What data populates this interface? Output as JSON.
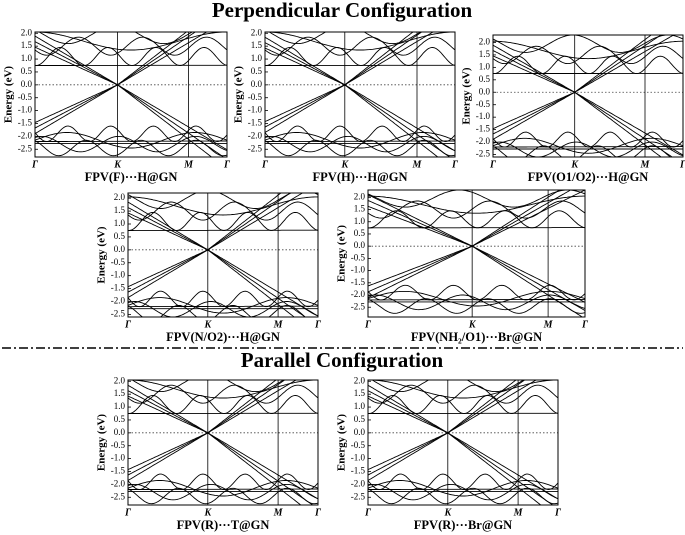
{
  "title_top": "Perpendicular Configuration",
  "title_bottom": "Parallel Configuration",
  "panels": [
    {
      "caption": "FPV(F)···H@GN",
      "ylabel": "Energy (eV)",
      "ylim": [
        -2.8,
        2.05
      ],
      "yticks": [
        {
          "value": 2,
          "label": "2.0"
        },
        1.5,
        {
          "value": 1,
          "label": "1.0"
        },
        0.5,
        {
          "value": 0,
          "label": "0.0"
        },
        -0.5,
        {
          "value": -1,
          "label": "-1.0"
        },
        -1.5,
        {
          "value": -2,
          "label": "-2.0"
        },
        -2.5
      ],
      "xlim": [
        0,
        1
      ],
      "xticks": [
        {
          "value": 0,
          "label": "Γ"
        },
        {
          "value": 0.43,
          "label": "K"
        },
        {
          "value": 0.8,
          "label": "M"
        },
        {
          "value": 1,
          "label": "Γ"
        }
      ]
    },
    {
      "caption": "FPV(H)···H@GN",
      "ylabel": "Energy (eV)",
      "ylim": [
        -2.8,
        2.05
      ],
      "yticks": [
        {
          "value": 2,
          "label": "2.0"
        },
        1.5,
        {
          "value": 1,
          "label": "1.0"
        },
        0.5,
        {
          "value": 0,
          "label": "0.0"
        },
        -0.5,
        {
          "value": -1,
          "label": "-1.0"
        },
        -1.5,
        {
          "value": -2,
          "label": "-2.0"
        },
        -2.5
      ],
      "xlim": [
        0,
        1
      ],
      "xticks": [
        {
          "value": 0,
          "label": "Γ"
        },
        {
          "value": 0.42,
          "label": "K"
        },
        {
          "value": 0.8,
          "label": "M"
        },
        {
          "value": 1,
          "label": "Γ"
        }
      ]
    },
    {
      "caption": "FPV(O1/O2)···H@GN",
      "ylabel": "Energy (eV)",
      "ylim": [
        -2.6,
        2.3
      ],
      "yticks": [
        {
          "value": 2,
          "label": "2.0"
        },
        1.5,
        {
          "value": 1,
          "label": "1.0"
        },
        0.5,
        {
          "value": 0,
          "label": "0.0"
        },
        -0.5,
        {
          "value": -1,
          "label": "-1.0"
        },
        -1.5,
        {
          "value": -2,
          "label": "-2.0"
        },
        -2.5
      ],
      "xlim": [
        0,
        1
      ],
      "xticks": [
        {
          "value": 0,
          "label": "Γ"
        },
        {
          "value": 0.43,
          "label": "K"
        },
        {
          "value": 0.8,
          "label": "M"
        },
        {
          "value": 1,
          "label": "Γ"
        }
      ]
    },
    {
      "caption": "FPV(N/O2)···H@GN",
      "ylabel": "Energy (eV)",
      "ylim": [
        -2.6,
        2.2
      ],
      "yticks": [
        {
          "value": 2,
          "label": "2.0"
        },
        1.5,
        {
          "value": 1,
          "label": "1.0"
        },
        0.5,
        {
          "value": 0,
          "label": "0.0"
        },
        -0.5,
        {
          "value": -1,
          "label": "-1.0"
        },
        -1.5,
        {
          "value": -2,
          "label": "-2.0"
        },
        -2.5
      ],
      "xlim": [
        0,
        1
      ],
      "xticks": [
        {
          "value": 0,
          "label": "Γ"
        },
        {
          "value": 0.42,
          "label": "K"
        },
        {
          "value": 0.79,
          "label": "M"
        },
        {
          "value": 1,
          "label": "Γ"
        }
      ]
    },
    {
      "caption": "FPV(NH₂/O1)···Br@GN",
      "ylabel": "Energy (eV)",
      "ylim": [
        -2.9,
        2.3
      ],
      "yticks": [
        {
          "value": 2,
          "label": "2.0"
        },
        1.5,
        {
          "value": 1,
          "label": "1.0"
        },
        0.5,
        {
          "value": 0,
          "label": "0.0"
        },
        -0.5,
        {
          "value": -1,
          "label": "-1.0"
        },
        -1.5,
        {
          "value": -2,
          "label": "-2.0"
        },
        -2.5
      ],
      "xlim": [
        0,
        1
      ],
      "xticks": [
        {
          "value": 0,
          "label": "Γ"
        },
        {
          "value": 0.48,
          "label": "K"
        },
        {
          "value": 0.83,
          "label": "M"
        },
        {
          "value": 1,
          "label": "Γ"
        }
      ]
    },
    {
      "caption": "FPV(R)···T@GN",
      "ylabel": "Energy (eV)",
      "ylim": [
        -2.8,
        2.05
      ],
      "yticks": [
        {
          "value": 2,
          "label": "2.0"
        },
        1.5,
        {
          "value": 1,
          "label": "1.0"
        },
        0.5,
        {
          "value": 0,
          "label": "0.0"
        },
        -0.5,
        {
          "value": -1,
          "label": "-1.0"
        },
        -1.5,
        {
          "value": -2,
          "label": "-2.0"
        },
        -2.5
      ],
      "xlim": [
        0,
        1
      ],
      "xticks": [
        {
          "value": 0,
          "label": "Γ"
        },
        {
          "value": 0.42,
          "label": "K"
        },
        {
          "value": 0.79,
          "label": "M"
        },
        {
          "value": 1,
          "label": "Γ"
        }
      ]
    },
    {
      "caption": "FPV(R)···Br@GN",
      "ylabel": "Energy (eV)",
      "ylim": [
        -2.8,
        2.05
      ],
      "yticks": [
        {
          "value": 2,
          "label": "2.0"
        },
        1.5,
        {
          "value": 1,
          "label": "1.0"
        },
        0.5,
        {
          "value": 0,
          "label": "0.0"
        },
        -0.5,
        {
          "value": -1,
          "label": "-1.0"
        },
        -1.5,
        {
          "value": -2,
          "label": "-2.0"
        },
        -2.5
      ],
      "xlim": [
        0,
        1
      ],
      "xticks": [
        {
          "value": 0,
          "label": "Γ"
        },
        {
          "value": 0.42,
          "label": "K"
        },
        {
          "value": 0.79,
          "label": "M"
        },
        {
          "value": 1,
          "label": "Γ"
        }
      ]
    }
  ]
}
